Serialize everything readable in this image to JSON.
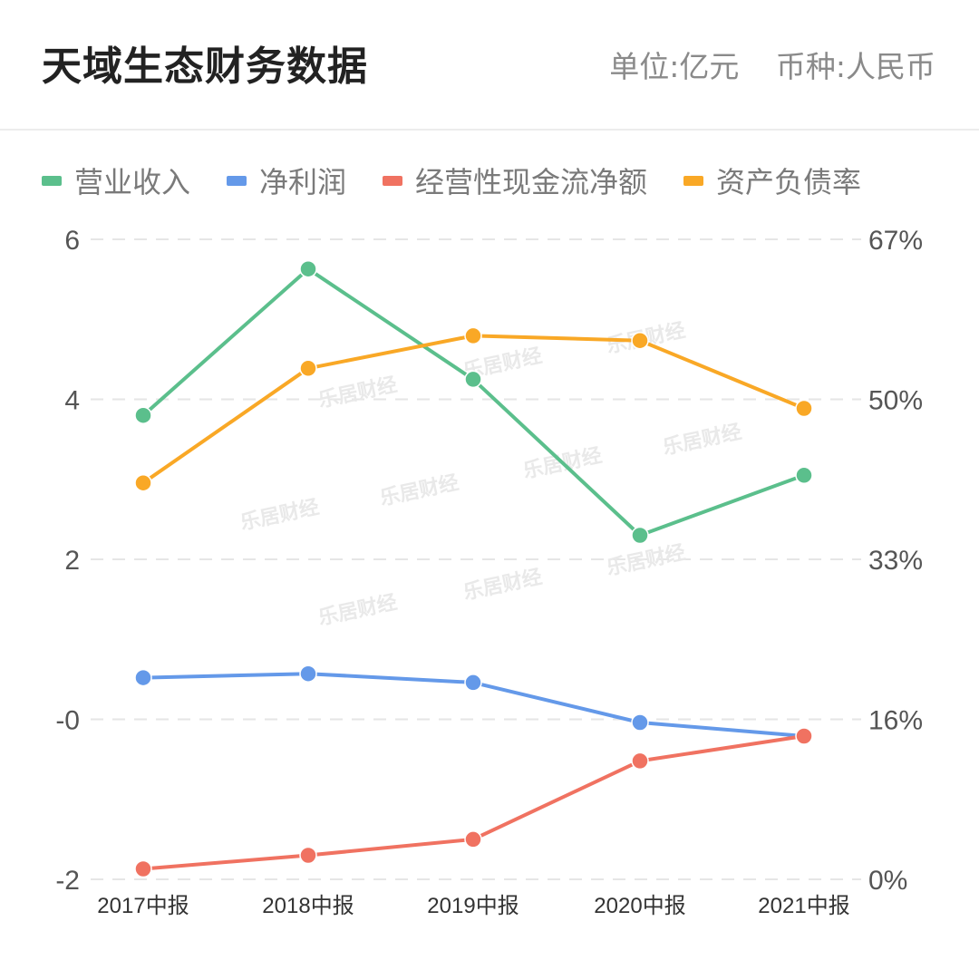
{
  "header": {
    "title": "天域生态财务数据",
    "unit": "单位:亿元",
    "currency": "币种:人民币"
  },
  "watermark": "乐居财经",
  "chart_data": {
    "type": "line",
    "categories": [
      "2017中报",
      "2018中报",
      "2019中报",
      "2020中报",
      "2021中报"
    ],
    "y_left": {
      "ticks": [
        "6",
        "4",
        "2",
        "-0",
        "-2"
      ],
      "range": [
        -2,
        6
      ]
    },
    "y_right": {
      "ticks": [
        "67%",
        "50%",
        "33%",
        "16%",
        "0%"
      ],
      "range": [
        0,
        67
      ]
    },
    "grid": "dashed horizontal",
    "legend_position": "top-left",
    "series": [
      {
        "name": "营业收入",
        "axis": "left",
        "color": "#5bbf8c",
        "values": [
          3.8,
          5.63,
          4.25,
          2.3,
          3.05
        ]
      },
      {
        "name": "净利润",
        "axis": "left",
        "color": "#6499e9",
        "values": [
          0.52,
          0.57,
          0.46,
          -0.04,
          -0.21
        ]
      },
      {
        "name": "经营性现金流净额",
        "axis": "left",
        "color": "#f07261",
        "values": [
          -1.87,
          -1.7,
          -1.5,
          -0.52,
          -0.21
        ]
      },
      {
        "name": "资产负债率",
        "axis": "right",
        "color": "#f9a826",
        "values": [
          41.5,
          53.5,
          56.9,
          56.4,
          49.3
        ]
      }
    ]
  }
}
